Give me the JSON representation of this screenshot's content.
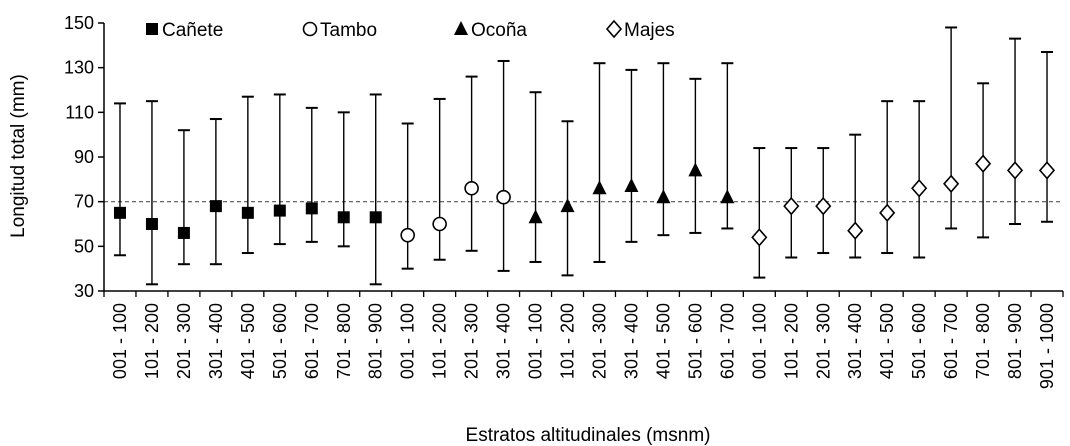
{
  "chart_data": {
    "type": "scatter",
    "subtype": "point-with-range",
    "xlabel": "Estratos altitudinales (msnm)",
    "ylabel": "Longitud total (mm)",
    "ylim": [
      30,
      150
    ],
    "yticks": [
      30,
      50,
      70,
      90,
      110,
      130,
      150
    ],
    "reference_line": 70,
    "grid": false,
    "legend_position": "top",
    "series": [
      {
        "name": "Cañete",
        "marker": "filled-square",
        "points": [
          {
            "label": "001 - 100",
            "value": 65,
            "min": 46,
            "max": 114
          },
          {
            "label": "101 - 200",
            "value": 60,
            "min": 33,
            "max": 115
          },
          {
            "label": "201 - 300",
            "value": 56,
            "min": 42,
            "max": 102
          },
          {
            "label": "301 - 400",
            "value": 68,
            "min": 42,
            "max": 107
          },
          {
            "label": "401 - 500",
            "value": 65,
            "min": 47,
            "max": 117
          },
          {
            "label": "501 - 600",
            "value": 66,
            "min": 51,
            "max": 118
          },
          {
            "label": "601 - 700",
            "value": 67,
            "min": 52,
            "max": 112
          },
          {
            "label": "701 - 800",
            "value": 63,
            "min": 50,
            "max": 110
          },
          {
            "label": "801 - 900",
            "value": 63,
            "min": 33,
            "max": 118
          }
        ]
      },
      {
        "name": "Tambo",
        "marker": "open-circle",
        "points": [
          {
            "label": "001 - 100",
            "value": 55,
            "min": 40,
            "max": 105
          },
          {
            "label": "101 - 200",
            "value": 60,
            "min": 44,
            "max": 116
          },
          {
            "label": "201 - 300",
            "value": 76,
            "min": 48,
            "max": 126
          },
          {
            "label": "301 - 400",
            "value": 72,
            "min": 39,
            "max": 133
          }
        ]
      },
      {
        "name": "Ocoña",
        "marker": "filled-triangle",
        "points": [
          {
            "label": "001 - 100",
            "value": 63,
            "min": 43,
            "max": 119
          },
          {
            "label": "101 - 200",
            "value": 68,
            "min": 37,
            "max": 106
          },
          {
            "label": "201 - 300",
            "value": 76,
            "min": 43,
            "max": 132
          },
          {
            "label": "301 - 400",
            "value": 77,
            "min": 52,
            "max": 129
          },
          {
            "label": "401 - 500",
            "value": 72,
            "min": 55,
            "max": 132
          },
          {
            "label": "501 - 600",
            "value": 84,
            "min": 56,
            "max": 125
          },
          {
            "label": "601 - 700",
            "value": 72,
            "min": 58,
            "max": 132
          }
        ]
      },
      {
        "name": "Majes",
        "marker": "open-diamond",
        "points": [
          {
            "label": "001 - 100",
            "value": 54,
            "min": 36,
            "max": 94
          },
          {
            "label": "101 - 200",
            "value": 68,
            "min": 45,
            "max": 94
          },
          {
            "label": "201 - 300",
            "value": 68,
            "min": 47,
            "max": 94
          },
          {
            "label": "301 - 400",
            "value": 57,
            "min": 45,
            "max": 100
          },
          {
            "label": "401 - 500",
            "value": 65,
            "min": 47,
            "max": 115
          },
          {
            "label": "501 - 600",
            "value": 76,
            "min": 45,
            "max": 115
          },
          {
            "label": "601 - 700",
            "value": 78,
            "min": 58,
            "max": 148
          },
          {
            "label": "701 - 800",
            "value": 87,
            "min": 54,
            "max": 123
          },
          {
            "label": "801 - 900",
            "value": 84,
            "min": 60,
            "max": 143
          },
          {
            "label": "901 - 1000",
            "value": 84,
            "min": 61,
            "max": 137
          }
        ]
      }
    ]
  }
}
